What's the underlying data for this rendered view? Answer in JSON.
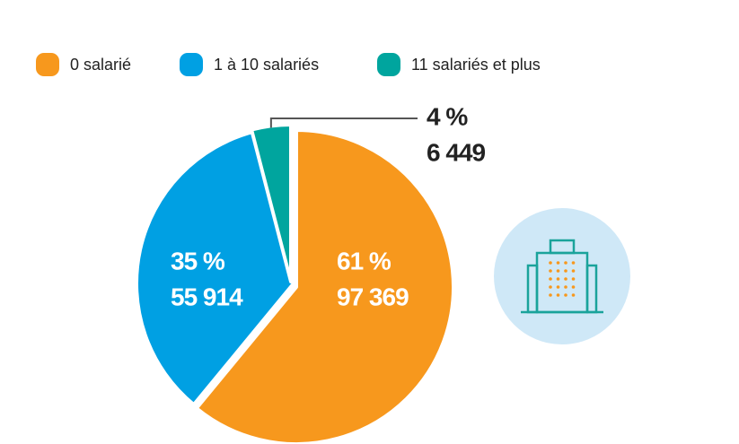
{
  "chart_data": {
    "type": "pie",
    "categories": [
      "0 salarié",
      "1 à 10 salariés",
      "11 salariés et plus"
    ],
    "values": [
      61,
      35,
      4
    ],
    "value_labels": [
      "61 %",
      "35 %",
      "4 %"
    ],
    "counts": [
      97369,
      55914,
      6449
    ],
    "count_labels": [
      "97 369",
      "55 914",
      "6 449"
    ],
    "colors": [
      "#f7981d",
      "#00a0e3",
      "#00a59e"
    ],
    "legend": "top"
  }
}
